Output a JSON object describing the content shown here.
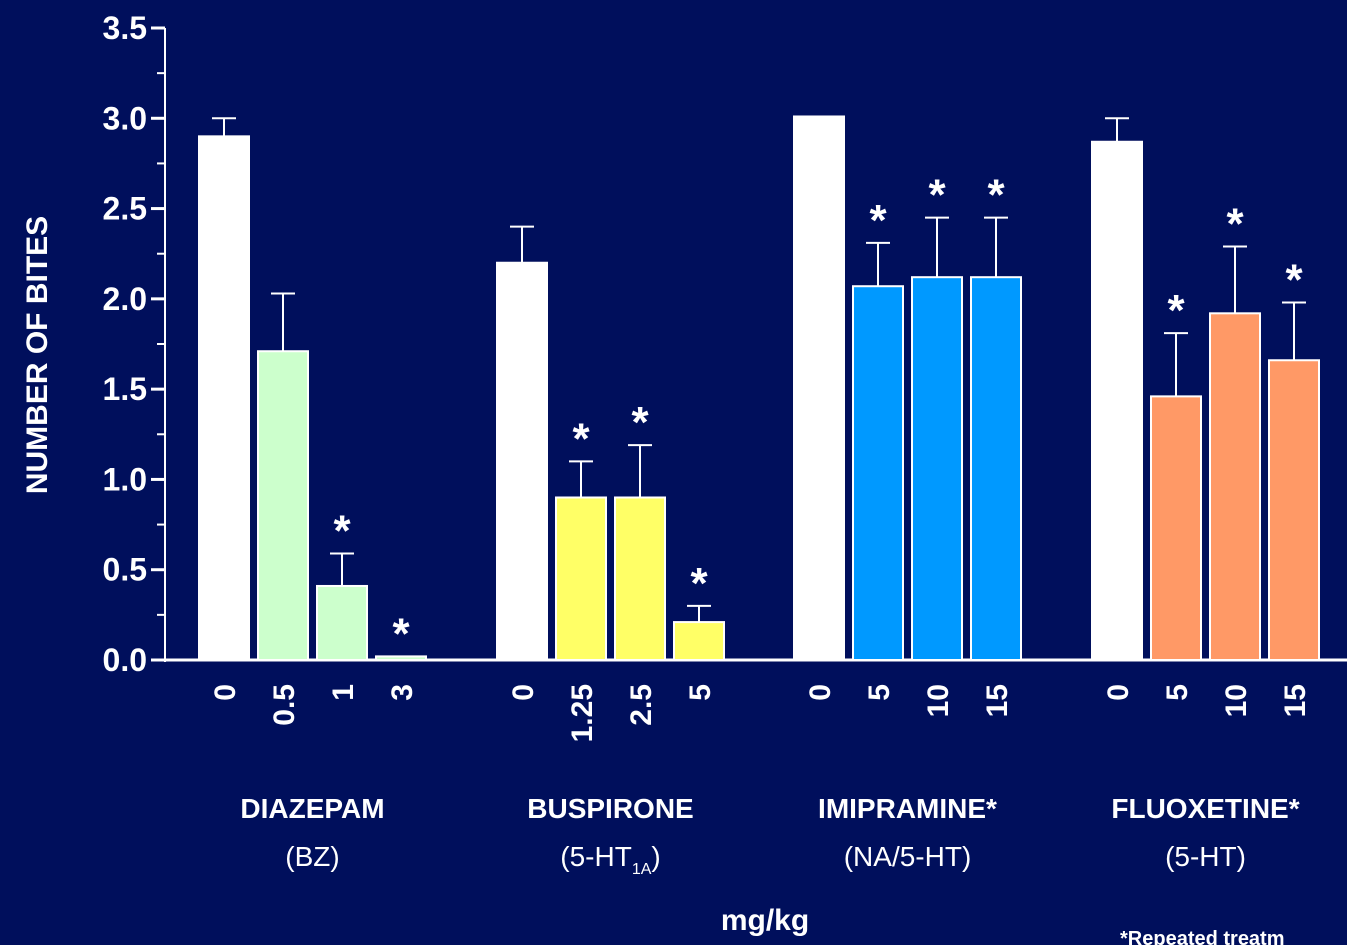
{
  "chart_data": {
    "type": "bar",
    "ylabel": "NUMBER OF BITES",
    "xlabel": "mg/kg",
    "ylim": [
      0,
      3.5
    ],
    "yticks": [
      "0.0",
      "0.5",
      "1.0",
      "1.5",
      "2.0",
      "2.5",
      "3.0",
      "3.5"
    ],
    "footnote": "*Repeated treatm",
    "significance_marker": "*",
    "groups": [
      {
        "name": "DIAZEPAM",
        "class_prefix": "(BZ",
        "class_sub": "",
        "class_suffix": ")",
        "color": "#ccffcc",
        "doses": [
          "0",
          "0.5",
          "1",
          "3"
        ],
        "values": [
          2.9,
          1.71,
          0.41,
          0.02
        ],
        "errors": [
          0.1,
          0.32,
          0.18,
          0
        ],
        "significant": [
          false,
          false,
          true,
          true
        ]
      },
      {
        "name": "BUSPIRONE",
        "class_prefix": "(5-HT",
        "class_sub": "1A",
        "class_suffix": ")",
        "color": "#ffff66",
        "doses": [
          "0",
          "1.25",
          "2.5",
          "5"
        ],
        "values": [
          2.2,
          0.9,
          0.9,
          0.21
        ],
        "errors": [
          0.2,
          0.2,
          0.29,
          0.09
        ],
        "significant": [
          false,
          true,
          true,
          true
        ]
      },
      {
        "name": "IMIPRAMINE*",
        "class_prefix": "(NA/5-HT",
        "class_sub": "",
        "class_suffix": ")",
        "color": "#0099ff",
        "doses": [
          "0",
          "5",
          "10",
          "15"
        ],
        "values": [
          3.01,
          2.07,
          2.12,
          2.12
        ],
        "errors": [
          0,
          0.24,
          0.33,
          0.33
        ],
        "significant": [
          false,
          true,
          true,
          true
        ]
      },
      {
        "name": "FLUOXETINE*",
        "class_prefix": "(5-HT",
        "class_sub": "",
        "class_suffix": ")",
        "color": "#ff9966",
        "doses": [
          "0",
          "5",
          "10",
          "15"
        ],
        "values": [
          2.87,
          1.46,
          1.92,
          1.66
        ],
        "errors": [
          0.13,
          0.35,
          0.37,
          0.32
        ],
        "significant": [
          false,
          true,
          true,
          true
        ]
      }
    ]
  }
}
